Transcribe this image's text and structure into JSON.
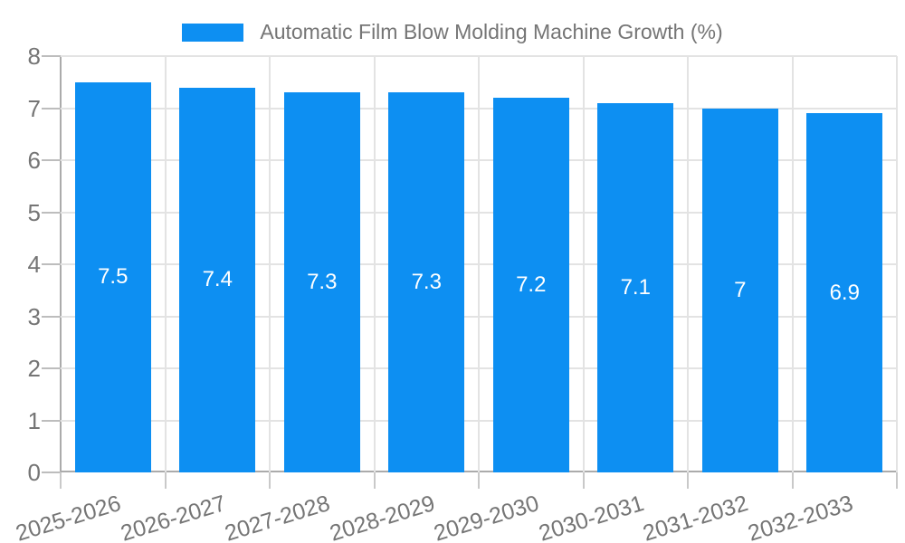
{
  "chart_data": {
    "type": "bar",
    "title": "Automatic Film Blow Molding Machine Growth (%)",
    "legend_position": "top",
    "categories": [
      "2025-2026",
      "2026-2027",
      "2027-2028",
      "2028-2029",
      "2029-2030",
      "2030-2031",
      "2031-2032",
      "2032-2033"
    ],
    "values": [
      7.5,
      7.4,
      7.3,
      7.3,
      7.2,
      7.1,
      7,
      6.9
    ],
    "bar_labels": [
      "7.5",
      "7.4",
      "7.3",
      "7.3",
      "7.2",
      "7.1",
      "7",
      "6.9"
    ],
    "xlabel": "",
    "ylabel": "",
    "ylim": [
      0,
      8
    ],
    "yticks": [
      "0",
      "1",
      "2",
      "3",
      "4",
      "5",
      "6",
      "7",
      "8"
    ],
    "grid": true,
    "colors": {
      "bar": "#0d8ff2",
      "value_label": "#ffffff",
      "axis_text": "#757575",
      "grid_line": "#e3e3e3",
      "axis_line": "#ababab",
      "tick": "#c2c2c2"
    }
  }
}
